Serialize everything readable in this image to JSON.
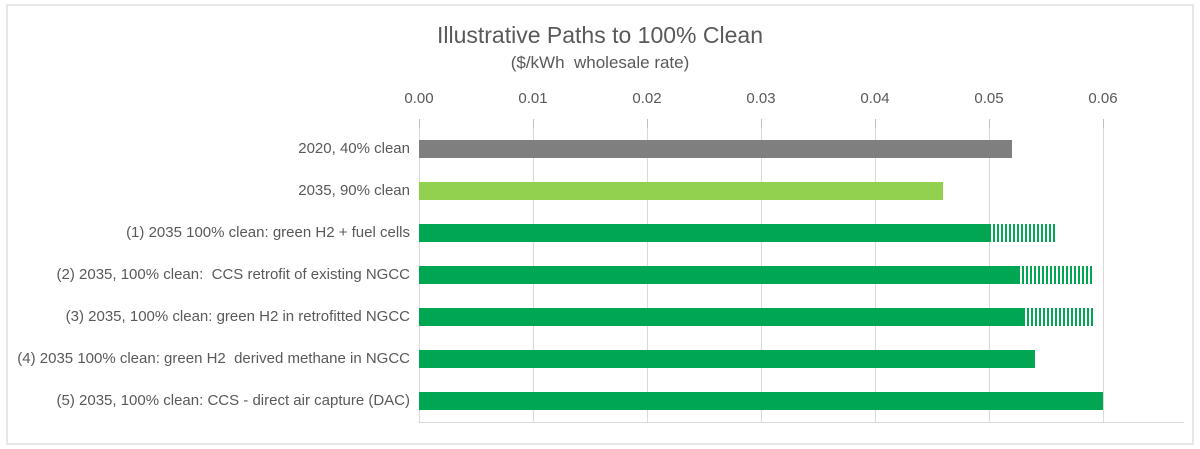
{
  "chart_data": {
    "type": "bar",
    "orientation": "horizontal",
    "title": "Illustrative Paths to 100% Clean",
    "subtitle": "($/kWh  wholesale rate)",
    "xlabel": "",
    "ylabel": "",
    "x_axis": {
      "position": "top",
      "min": 0.0,
      "max": 0.06,
      "tick_interval": 0.01,
      "tick_labels": [
        "0.00",
        "0.01",
        "0.02",
        "0.03",
        "0.04",
        "0.05",
        "0.06"
      ]
    },
    "grid": "vertical-only",
    "legend": "none",
    "bars": [
      {
        "label": "2020, 40% clean",
        "value": 0.052,
        "hatch_value": 0,
        "color": "#7F7F7F"
      },
      {
        "label": "2035, 90% clean",
        "value": 0.046,
        "hatch_value": 0,
        "color": "#92D050"
      },
      {
        "label": "(1) 2035 100% clean: green H2 + fuel cells",
        "value": 0.05,
        "hatch_value": 0.006,
        "color": "#00A651"
      },
      {
        "label": "(2) 2035, 100% clean:  CCS retrofit of existing NGCC",
        "value": 0.0525,
        "hatch_value": 0.0065,
        "color": "#00A651"
      },
      {
        "label": "(3) 2035, 100% clean: green H2 in retrofitted NGCC",
        "value": 0.053,
        "hatch_value": 0.0062,
        "color": "#00A651"
      },
      {
        "label": "(4) 2035 100% clean: green H2  derived methane in NGCC",
        "value": 0.054,
        "hatch_value": 0,
        "color": "#00A651"
      },
      {
        "label": "(5) 2035, 100% clean: CCS - direct air capture (DAC)",
        "value": 0.06,
        "hatch_value": 0,
        "color": "#00A651"
      }
    ],
    "hatch_meaning": "striped right-end segment of bar (cost uncertainty range)",
    "colors": {
      "gray_bar": "#7F7F7F",
      "light_green_bar": "#92D050",
      "green_bar": "#00A651",
      "gridline": "#D9D9D9",
      "text": "#595959",
      "frame_border": "#E7E7E7"
    }
  }
}
